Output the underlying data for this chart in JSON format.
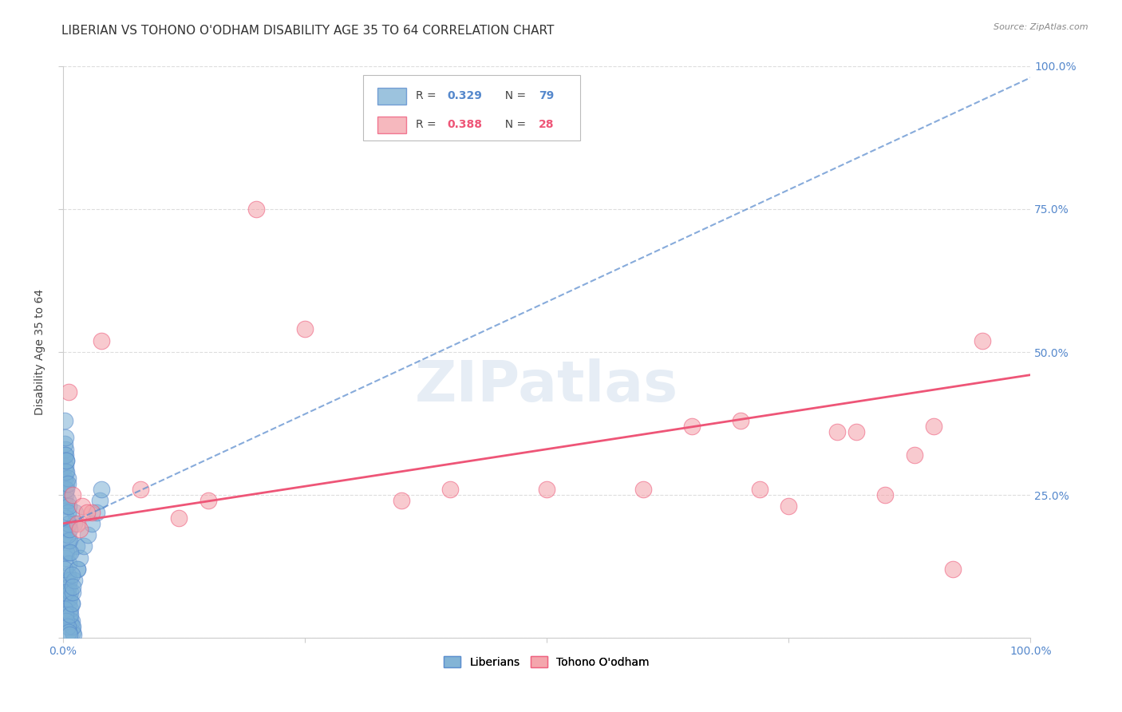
{
  "title": "LIBERIAN VS TOHONO O'ODHAM DISABILITY AGE 35 TO 64 CORRELATION CHART",
  "source": "Source: ZipAtlas.com",
  "ylabel": "Disability Age 35 to 64",
  "xlim": [
    0,
    1
  ],
  "ylim": [
    0,
    1
  ],
  "xticks": [
    0,
    0.25,
    0.5,
    0.75,
    1.0
  ],
  "yticks": [
    0,
    0.25,
    0.5,
    0.75,
    1.0
  ],
  "xticklabels": [
    "0.0%",
    "",
    "",
    "",
    "100.0%"
  ],
  "yticklabels_right": [
    "",
    "25.0%",
    "50.0%",
    "75.0%",
    "100.0%"
  ],
  "blue_R": 0.329,
  "blue_N": 79,
  "pink_R": 0.388,
  "pink_N": 28,
  "blue_color": "#7BAFD4",
  "pink_color": "#F4A0A8",
  "blue_line_color": "#5588CC",
  "pink_line_color": "#EE5577",
  "legend_label_blue": "Liberians",
  "legend_label_pink": "Tohono O'odham",
  "blue_points_x": [
    0.002,
    0.003,
    0.004,
    0.005,
    0.006,
    0.007,
    0.008,
    0.009,
    0.01,
    0.011,
    0.012,
    0.013,
    0.014,
    0.015,
    0.002,
    0.003,
    0.004,
    0.005,
    0.006,
    0.007,
    0.008,
    0.009,
    0.01,
    0.003,
    0.004,
    0.005,
    0.006,
    0.007,
    0.008,
    0.009,
    0.002,
    0.003,
    0.004,
    0.005,
    0.006,
    0.003,
    0.004,
    0.005,
    0.006,
    0.007,
    0.002,
    0.003,
    0.004,
    0.005,
    0.003,
    0.004,
    0.005,
    0.002,
    0.003,
    0.004,
    0.002,
    0.003,
    0.002,
    0.003,
    0.004,
    0.005,
    0.006,
    0.007,
    0.008,
    0.009,
    0.01,
    0.012,
    0.015,
    0.018,
    0.022,
    0.026,
    0.03,
    0.035,
    0.038,
    0.04,
    0.002,
    0.003,
    0.004,
    0.005,
    0.006,
    0.007,
    0.008,
    0.009,
    0.01
  ],
  "blue_points_y": [
    0.18,
    0.14,
    0.1,
    0.08,
    0.06,
    0.04,
    0.03,
    0.02,
    0.01,
    0.005,
    0.2,
    0.22,
    0.16,
    0.12,
    0.24,
    0.19,
    0.15,
    0.11,
    0.09,
    0.07,
    0.05,
    0.03,
    0.02,
    0.26,
    0.23,
    0.17,
    0.13,
    0.1,
    0.08,
    0.06,
    0.28,
    0.25,
    0.21,
    0.18,
    0.15,
    0.3,
    0.27,
    0.24,
    0.2,
    0.17,
    0.32,
    0.29,
    0.26,
    0.22,
    0.33,
    0.31,
    0.28,
    0.34,
    0.32,
    0.29,
    0.12,
    0.08,
    0.05,
    0.04,
    0.03,
    0.02,
    0.01,
    0.005,
    0.04,
    0.06,
    0.08,
    0.1,
    0.12,
    0.14,
    0.16,
    0.18,
    0.2,
    0.22,
    0.24,
    0.26,
    0.38,
    0.35,
    0.31,
    0.27,
    0.23,
    0.19,
    0.15,
    0.11,
    0.09
  ],
  "pink_points_x": [
    0.006,
    0.01,
    0.015,
    0.02,
    0.03,
    0.04,
    0.08,
    0.12,
    0.15,
    0.2,
    0.25,
    0.35,
    0.4,
    0.5,
    0.6,
    0.65,
    0.7,
    0.72,
    0.75,
    0.8,
    0.82,
    0.85,
    0.88,
    0.9,
    0.92,
    0.95,
    0.018,
    0.025
  ],
  "pink_points_y": [
    0.43,
    0.25,
    0.2,
    0.23,
    0.22,
    0.52,
    0.26,
    0.21,
    0.24,
    0.75,
    0.54,
    0.24,
    0.26,
    0.26,
    0.26,
    0.37,
    0.38,
    0.26,
    0.23,
    0.36,
    0.36,
    0.25,
    0.32,
    0.37,
    0.12,
    0.52,
    0.19,
    0.22
  ],
  "blue_line_x0": 0.0,
  "blue_line_x1": 1.0,
  "blue_line_y0": 0.195,
  "blue_line_y1": 0.98,
  "pink_line_x0": 0.0,
  "pink_line_x1": 1.0,
  "pink_line_y0": 0.2,
  "pink_line_y1": 0.46,
  "bg_color": "#FFFFFF",
  "grid_color": "#DDDDDD",
  "title_fontsize": 11,
  "tick_fontsize": 10,
  "tick_color": "#5588CC"
}
